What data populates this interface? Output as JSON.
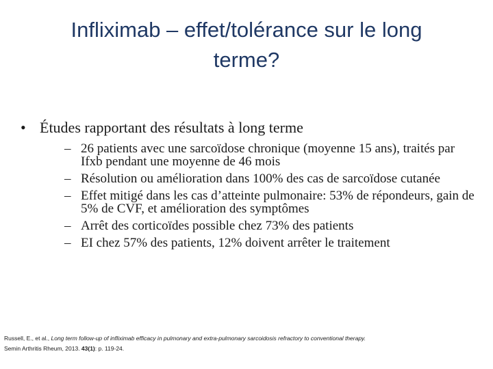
{
  "title": {
    "line1": "Infliximab – effet/tolérance sur le long",
    "line2": "terme?"
  },
  "bullet": {
    "mark": "•",
    "text": "Études rapportant des résultats à long terme"
  },
  "sub_items": [
    {
      "mark": "–",
      "text": "26 patients avec une sarcoïdose chronique (moyenne 15 ans), traités par Ifxb pendant une moyenne de 46 mois"
    },
    {
      "mark": "–",
      "text": "Résolution ou amélioration dans 100% des cas de sarcoïdose cutanée"
    },
    {
      "mark": "–",
      "text": "Effet mitigé dans les cas d’atteinte pulmonaire: 53% de répondeurs, gain de 5% de CVF, et amélioration des symptômes"
    },
    {
      "mark": "–",
      "text": "Arrêt des corticoïdes possible chez 73% des patients"
    },
    {
      "mark": "–",
      "text": "EI chez 57% des patients, 12% doivent arrêter le traitement"
    }
  ],
  "reference": {
    "authors": "Russell, E., et al., ",
    "article_title": "Long term follow-up of infliximab efficacy in pulmonary and extra-pulmonary sarcoidosis refractory to conventional therapy.",
    "journal": "Semin Arthritis Rheum, 2013. ",
    "volume": "43(1)",
    "pages": ": p. 119-24."
  }
}
